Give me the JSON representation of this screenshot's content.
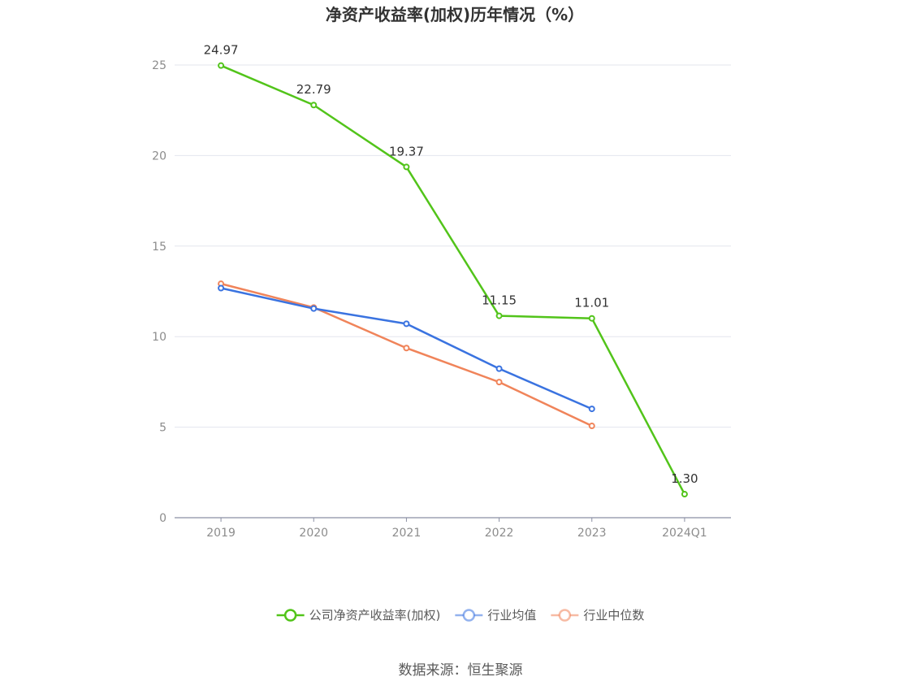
{
  "chart_data": {
    "type": "line",
    "title": "净资产收益率(加权)历年情况（%）",
    "categories": [
      "2019",
      "2020",
      "2021",
      "2022",
      "2023",
      "2024Q1"
    ],
    "ylim": [
      0,
      25
    ],
    "yticks": [
      0,
      5,
      10,
      15,
      20,
      25
    ],
    "grid": true,
    "legend_position": "bottom",
    "series": [
      {
        "name": "公司净资产收益率(加权)",
        "color": "#52c41a",
        "values": [
          24.97,
          22.79,
          19.37,
          11.15,
          11.01,
          1.3
        ],
        "labels": [
          "24.97",
          "22.79",
          "19.37",
          "11.15",
          "11.01",
          "1.30"
        ]
      },
      {
        "name": "行业均值",
        "color": "#3a73e0",
        "values": [
          12.68,
          11.55,
          10.71,
          8.23,
          6.01,
          null
        ]
      },
      {
        "name": "行业中位数",
        "color": "#f0845a",
        "values": [
          12.92,
          11.61,
          9.37,
          7.49,
          5.07,
          null
        ]
      }
    ]
  },
  "source": "数据来源：恒生聚源"
}
